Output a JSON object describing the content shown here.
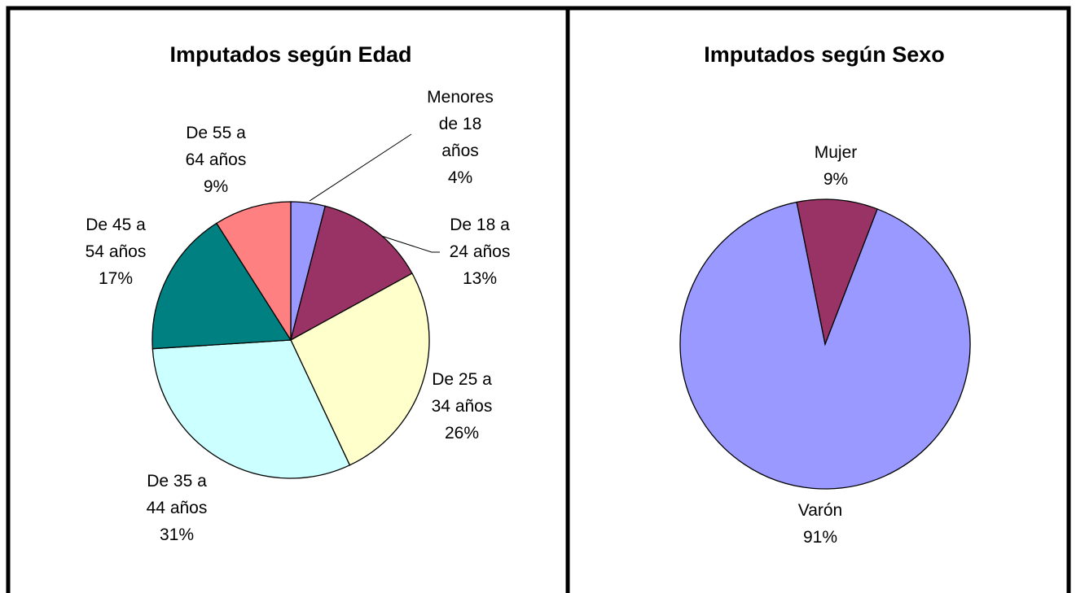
{
  "chart_data": [
    {
      "type": "pie",
      "title": "Imputados según Edad",
      "categories": [
        "Menores\nde 18\naños",
        "De 18 a\n24 años",
        "De 25 a\n34 años",
        "De 35 a\n44 años",
        "De 45 a\n54 años",
        "De 55 a\n64 años"
      ],
      "values": [
        4,
        13,
        26,
        31,
        17,
        9
      ],
      "value_labels": [
        "4%",
        "13%",
        "26%",
        "31%",
        "17%",
        "9%"
      ],
      "colors": [
        "#9999ff",
        "#993366",
        "#ffffcc",
        "#ccffff",
        "#008080",
        "#ff8080"
      ]
    },
    {
      "type": "pie",
      "title": "Imputados según Sexo",
      "categories": [
        "Varón",
        "Mujer"
      ],
      "values": [
        91,
        9
      ],
      "value_labels": [
        "91%",
        "9%"
      ],
      "colors": [
        "#9999ff",
        "#993366"
      ]
    }
  ]
}
